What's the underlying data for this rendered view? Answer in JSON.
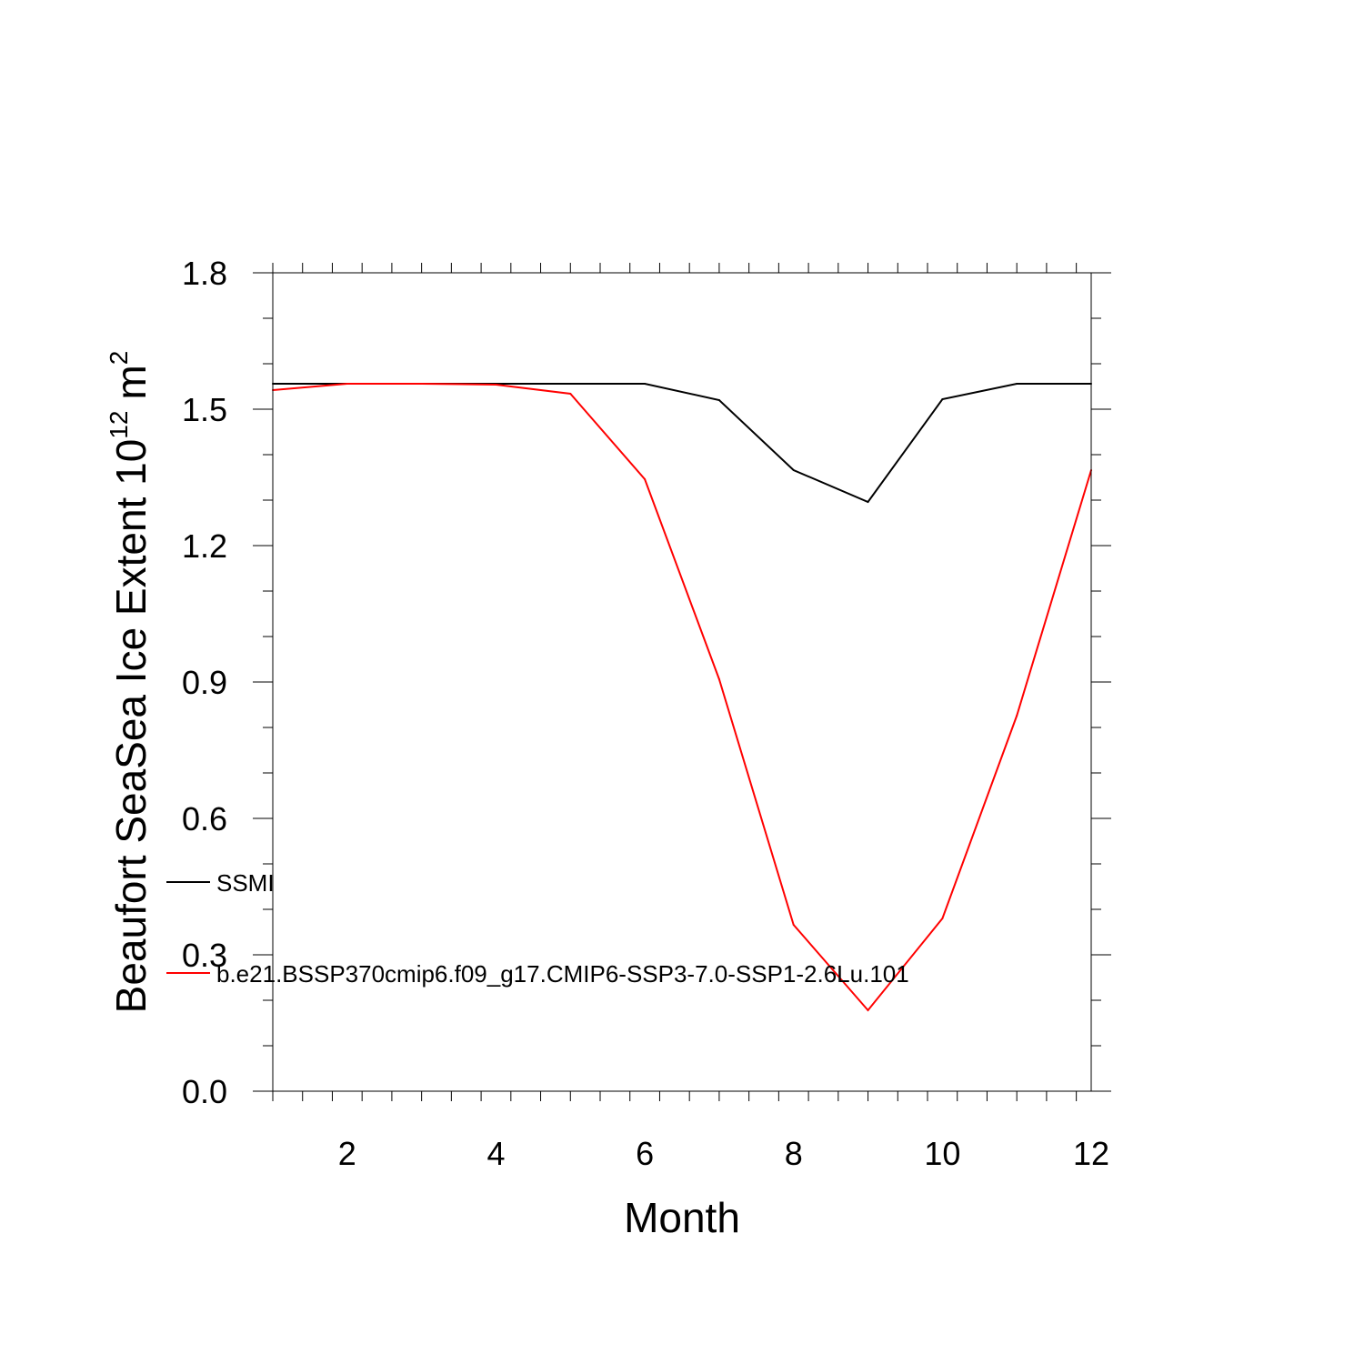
{
  "chart_data": {
    "type": "line",
    "xlabel": "Month",
    "ylabel": {
      "main": "Beaufort SeaSea Ice Extent 10",
      "exponent": "12",
      "unit": "m",
      "unit_exponent": "2"
    },
    "xlim": [
      1,
      12
    ],
    "ylim": [
      0.0,
      1.8
    ],
    "x_ticks": [
      2,
      4,
      6,
      8,
      10,
      12
    ],
    "x_tick_labels": [
      "2",
      "4",
      "6",
      "8",
      "10",
      "12"
    ],
    "y_ticks": [
      0.0,
      0.3,
      0.6,
      0.9,
      1.2,
      1.5,
      1.8
    ],
    "y_tick_labels": [
      "0.0",
      "0.3",
      "0.6",
      "0.9",
      "1.2",
      "1.5",
      "1.8"
    ],
    "grid": false,
    "legend_position": "left, lower-middle",
    "x": [
      1,
      2,
      3,
      4,
      5,
      6,
      7,
      8,
      9,
      10,
      11,
      12
    ],
    "series": [
      {
        "name": "SSMI",
        "color": "#000000",
        "values": [
          1.556,
          1.556,
          1.556,
          1.556,
          1.556,
          1.556,
          1.52,
          1.366,
          1.296,
          1.522,
          1.556,
          1.556
        ]
      },
      {
        "name": "b.e21.BSSP370cmip6.f09_g17.CMIP6-SSP3-7.0-SSP1-2.6Lu.101",
        "color": "#ff0000",
        "values": [
          1.542,
          1.556,
          1.556,
          1.554,
          1.534,
          1.346,
          0.906,
          0.366,
          0.178,
          0.38,
          0.826,
          1.366
        ]
      }
    ]
  }
}
